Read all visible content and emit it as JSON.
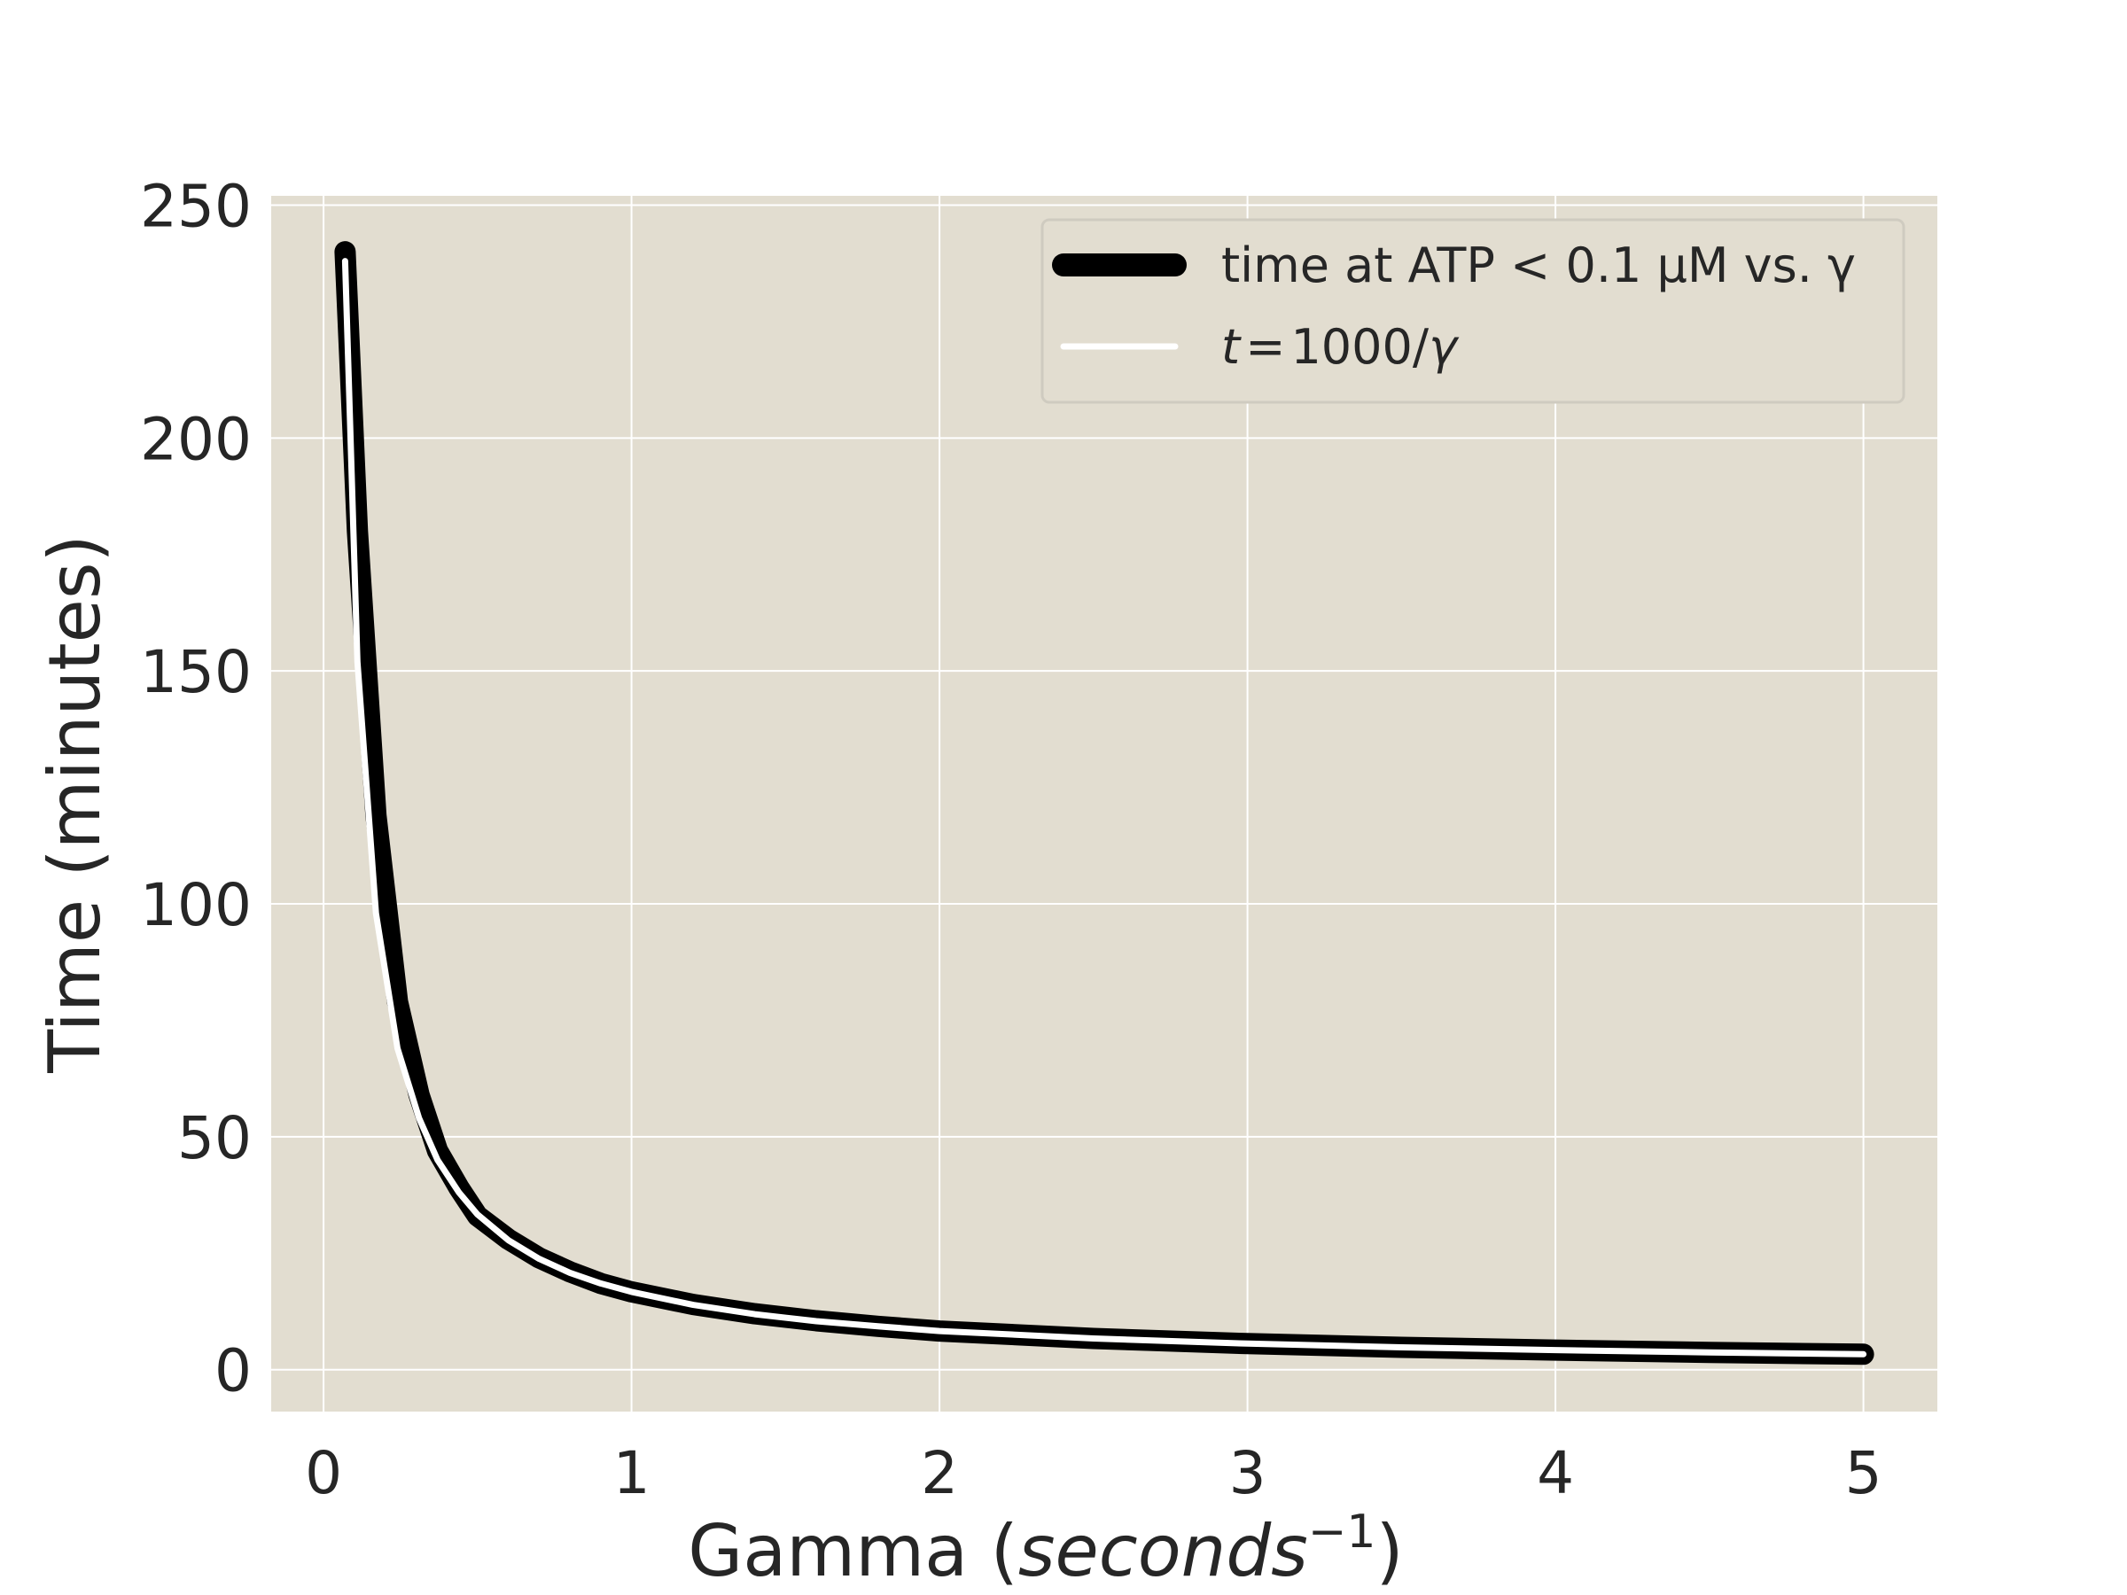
{
  "chart_data": {
    "type": "line",
    "title": "",
    "xlabel": "Gamma (seconds⁻¹)",
    "xlabel_main": "Gamma (",
    "xlabel_math": "seconds",
    "xlabel_exp": "−1",
    "xlabel_close": ")",
    "ylabel": "Time (minutes)",
    "xlim": [
      -0.17,
      5.24
    ],
    "ylim": [
      -9,
      252
    ],
    "xticks": [
      0,
      1,
      2,
      3,
      4,
      5
    ],
    "xtick_labels": [
      "0",
      "1",
      "2",
      "3",
      "4",
      "5"
    ],
    "yticks": [
      0,
      50,
      100,
      150,
      200,
      250
    ],
    "ytick_labels": [
      "0",
      "50",
      "100",
      "150",
      "200",
      "250"
    ],
    "grid": true,
    "background": "#e2ddd0",
    "grid_color": "#ffffff",
    "legend_position": "upper right",
    "series": [
      {
        "name": "time at ATP < 0.1 μM vs. γ",
        "color": "#000000",
        "x": [
          0.07,
          0.11,
          0.17,
          0.24,
          0.31,
          0.37,
          0.44,
          0.5,
          0.6,
          0.7,
          0.8,
          0.9,
          1.0,
          1.2,
          1.4,
          1.6,
          1.8,
          2.0,
          2.5,
          3.0,
          3.5,
          4.0,
          4.5,
          5.0
        ],
        "y": [
          240,
          180,
          119,
          79,
          59,
          47,
          39,
          33,
          28,
          24,
          21,
          18.5,
          16.7,
          14,
          12,
          10.5,
          9.3,
          8.3,
          6.7,
          5.6,
          4.8,
          4.2,
          3.7,
          3.3
        ]
      },
      {
        "name": "t = 1000/γ",
        "legend_math_t": "t",
        "legend_eq": "=",
        "legend_value": "1000/",
        "legend_math_gamma": "γ",
        "color": "#ffffff",
        "x": [
          0.07,
          0.11,
          0.17,
          0.24,
          0.31,
          0.37,
          0.44,
          0.5,
          0.6,
          0.7,
          0.8,
          0.9,
          1.0,
          1.2,
          1.4,
          1.6,
          1.8,
          2.0,
          2.5,
          3.0,
          3.5,
          4.0,
          4.5,
          5.0
        ],
        "y": [
          238,
          152,
          98,
          69,
          54,
          45,
          38,
          33.3,
          27.8,
          23.8,
          20.8,
          18.5,
          16.7,
          13.9,
          11.9,
          10.4,
          9.3,
          8.3,
          6.7,
          5.6,
          4.8,
          4.2,
          3.7,
          3.3
        ]
      }
    ]
  }
}
